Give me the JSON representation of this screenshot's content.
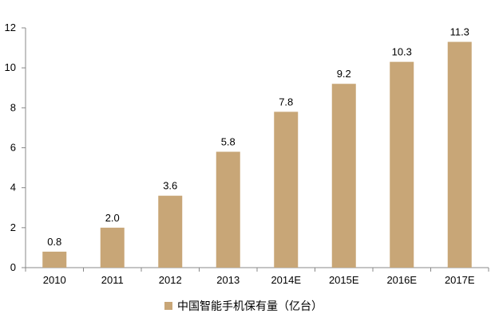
{
  "chart_data": {
    "type": "bar",
    "categories": [
      "2010",
      "2011",
      "2012",
      "2013",
      "2014E",
      "2015E",
      "2016E",
      "2017E"
    ],
    "series": [
      {
        "name": "中国智能手机保有量（亿台）",
        "values": [
          0.8,
          2.0,
          3.6,
          5.8,
          7.8,
          9.2,
          10.3,
          11.3
        ],
        "color": "#c8a677"
      }
    ],
    "value_labels": [
      "0.8",
      "2.0",
      "3.6",
      "5.8",
      "7.8",
      "9.2",
      "10.3",
      "11.3"
    ],
    "ylim": [
      0,
      12
    ],
    "yticks": [
      "0",
      "2",
      "4",
      "6",
      "8",
      "10",
      "12"
    ],
    "grid": false,
    "legend_position": "bottom-center"
  }
}
